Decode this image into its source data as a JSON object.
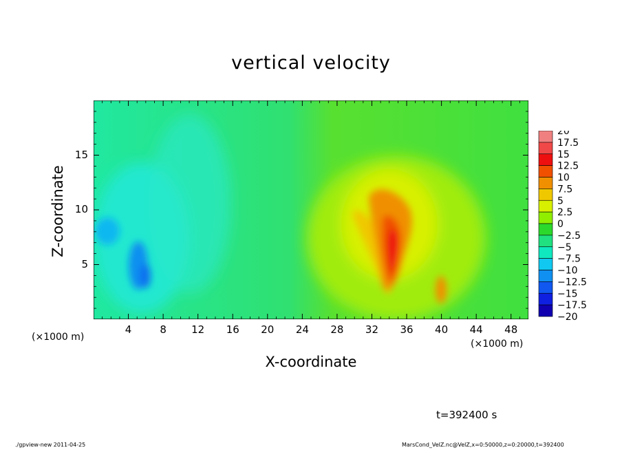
{
  "chart_data": {
    "type": "heatmap",
    "title": "vertical velocity",
    "xlabel": "X-coordinate",
    "ylabel": "Z-coordinate",
    "x_unit": "(×1000 m)",
    "x_ticks": [
      4,
      8,
      12,
      16,
      20,
      24,
      28,
      32,
      36,
      40,
      44,
      48
    ],
    "y_ticks": [
      5,
      10,
      15
    ],
    "xlim": [
      0,
      50
    ],
    "ylim": [
      0,
      20
    ],
    "colorbar": {
      "levels": [
        20,
        17.5,
        15,
        12.5,
        10,
        7.5,
        5,
        2.5,
        0,
        -2.5,
        -5,
        -7.5,
        -10,
        -12.5,
        -15,
        -17.5,
        -20
      ],
      "colors": [
        "#f08080",
        "#f04848",
        "#ee1010",
        "#f05000",
        "#f09000",
        "#f0c800",
        "#d8f000",
        "#90ee00",
        "#2cd82c",
        "#20e080",
        "#10e8c0",
        "#10c8f0",
        "#1090f0",
        "#1058f0",
        "#1020e0",
        "#1000b0",
        "#6010b0"
      ]
    },
    "features": [
      {
        "x": 34.5,
        "z": 6.5,
        "value": 15
      },
      {
        "x": 30,
        "z": 8.5,
        "value": 10
      },
      {
        "x": 36,
        "z": 9.5,
        "value": 10
      },
      {
        "x": 40,
        "z": 2.5,
        "value": 7.5
      },
      {
        "x": 5,
        "z": 5,
        "value": -10
      },
      {
        "x": 2,
        "z": 8,
        "value": -7.5
      }
    ]
  },
  "annotations": {
    "time": "t=392400 s",
    "footer_left": "./gpview-new  2011-04-25",
    "footer_right": "MarsCond_VelZ.nc@VelZ,x=0:50000,z=0:20000,t=392400"
  }
}
